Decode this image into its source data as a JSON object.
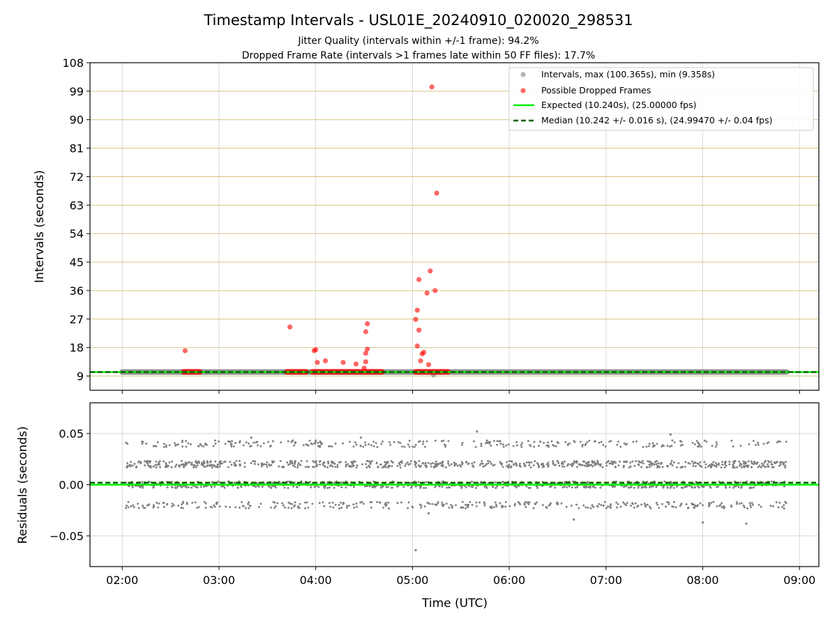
{
  "chart_data": [
    {
      "type": "scatter",
      "title": "Timestamp Intervals - USL01E_20240910_020020_298531",
      "subtitle_lines": [
        "Jitter Quality (intervals within +/-1 frame): 94.2%",
        "Dropped Frame Rate (intervals >1 frames late within 50 FF files): 17.7%"
      ],
      "xlabel": "",
      "ylabel": "Intervals (seconds)",
      "xlim": [
        "01:40",
        "09:12"
      ],
      "ylim": [
        4.5,
        108
      ],
      "yticks": [
        "9",
        "18",
        "27",
        "36",
        "45",
        "54",
        "63",
        "72",
        "81",
        "90",
        "99",
        "108"
      ],
      "grid": "on",
      "legend": {
        "placement": "top-right",
        "entries": [
          "Intervals, max (100.365s), min (9.358s)",
          "Possible Dropped Frames",
          "Expected (10.240s), (25.00000 fps)",
          "Median (10.242 +/- 0.016 s), (24.99470 +/- 0.04 fps)"
        ]
      },
      "series": [
        {
          "name": "Intervals, max (100.365s), min (9.358s)",
          "color": "#808080",
          "band": {
            "x_start": "02:00",
            "x_end": "08:52",
            "y": 10.24
          },
          "min_point": {
            "x": "05:13",
            "y": 9.358
          }
        },
        {
          "name": "Possible Dropped Frames",
          "color": "#ff0000",
          "clusters": [
            {
              "x_start": "02:38",
              "x_end": "02:48",
              "y": 10.3
            },
            {
              "x_start": "03:42",
              "x_end": "03:54",
              "y": 10.3
            },
            {
              "x_start": "03:58",
              "x_end": "04:41",
              "y": 10.3
            },
            {
              "x_start": "05:02",
              "x_end": "05:22",
              "y": 10.3
            }
          ],
          "points": [
            {
              "x": "02:39",
              "y": 17.0
            },
            {
              "x": "03:44",
              "y": 24.5
            },
            {
              "x": "03:59",
              "y": 17.0
            },
            {
              "x": "04:00",
              "y": 17.3
            },
            {
              "x": "04:01",
              "y": 13.3
            },
            {
              "x": "04:06",
              "y": 13.8
            },
            {
              "x": "04:17",
              "y": 13.3
            },
            {
              "x": "04:25",
              "y": 12.8
            },
            {
              "x": "04:30",
              "y": 11.5
            },
            {
              "x": "04:31",
              "y": 13.5
            },
            {
              "x": "04:31",
              "y": 16.2
            },
            {
              "x": "04:31",
              "y": 23.0
            },
            {
              "x": "04:32",
              "y": 25.5
            },
            {
              "x": "04:32",
              "y": 17.5
            },
            {
              "x": "05:02",
              "y": 26.9
            },
            {
              "x": "05:03",
              "y": 29.8
            },
            {
              "x": "05:03",
              "y": 18.5
            },
            {
              "x": "05:04",
              "y": 39.5
            },
            {
              "x": "05:04",
              "y": 23.5
            },
            {
              "x": "05:05",
              "y": 13.8
            },
            {
              "x": "05:06",
              "y": 16.0
            },
            {
              "x": "05:07",
              "y": 16.5
            },
            {
              "x": "05:09",
              "y": 35.2
            },
            {
              "x": "05:10",
              "y": 12.6
            },
            {
              "x": "05:11",
              "y": 42.2
            },
            {
              "x": "05:12",
              "y": 100.365
            },
            {
              "x": "05:14",
              "y": 36.0
            },
            {
              "x": "05:15",
              "y": 66.8
            }
          ]
        },
        {
          "name": "Expected (10.240s), (25.00000 fps)",
          "color": "#00ee00",
          "y": 10.24
        },
        {
          "name": "Median (10.242 +/- 0.016 s), (24.99470 +/- 0.04 fps)",
          "color": "#006400",
          "y": 10.242
        }
      ]
    },
    {
      "type": "scatter",
      "title": "",
      "xlabel": "Time (UTC)",
      "ylabel": "Residuals (seconds)",
      "xlim": [
        "01:40",
        "09:12"
      ],
      "ylim": [
        -0.08,
        0.08
      ],
      "xticks": [
        "02:00",
        "03:00",
        "04:00",
        "05:00",
        "06:00",
        "07:00",
        "08:00",
        "09:00"
      ],
      "yticks": [
        "−0.05",
        "0.00",
        "0.05"
      ],
      "grid": "on",
      "series": [
        {
          "name": "",
          "color": "#808080",
          "x_range": [
            "02:02",
            "08:52"
          ],
          "levels": [
            -0.02,
            0.0,
            0.02,
            0.04
          ],
          "outliers": [
            {
              "x": "05:02",
              "y": -0.064
            },
            {
              "x": "05:40",
              "y": 0.052
            },
            {
              "x": "07:40",
              "y": 0.049
            },
            {
              "x": "06:40",
              "y": -0.034
            },
            {
              "x": "08:00",
              "y": -0.037
            },
            {
              "x": "08:27",
              "y": -0.038
            },
            {
              "x": "05:10",
              "y": -0.028
            },
            {
              "x": "03:20",
              "y": 0.046
            },
            {
              "x": "04:28",
              "y": 0.046
            }
          ]
        },
        {
          "name": "",
          "color": "#00ee00",
          "y": 0.0
        },
        {
          "name": "",
          "color": "#006400",
          "y": 0.002
        }
      ]
    }
  ]
}
